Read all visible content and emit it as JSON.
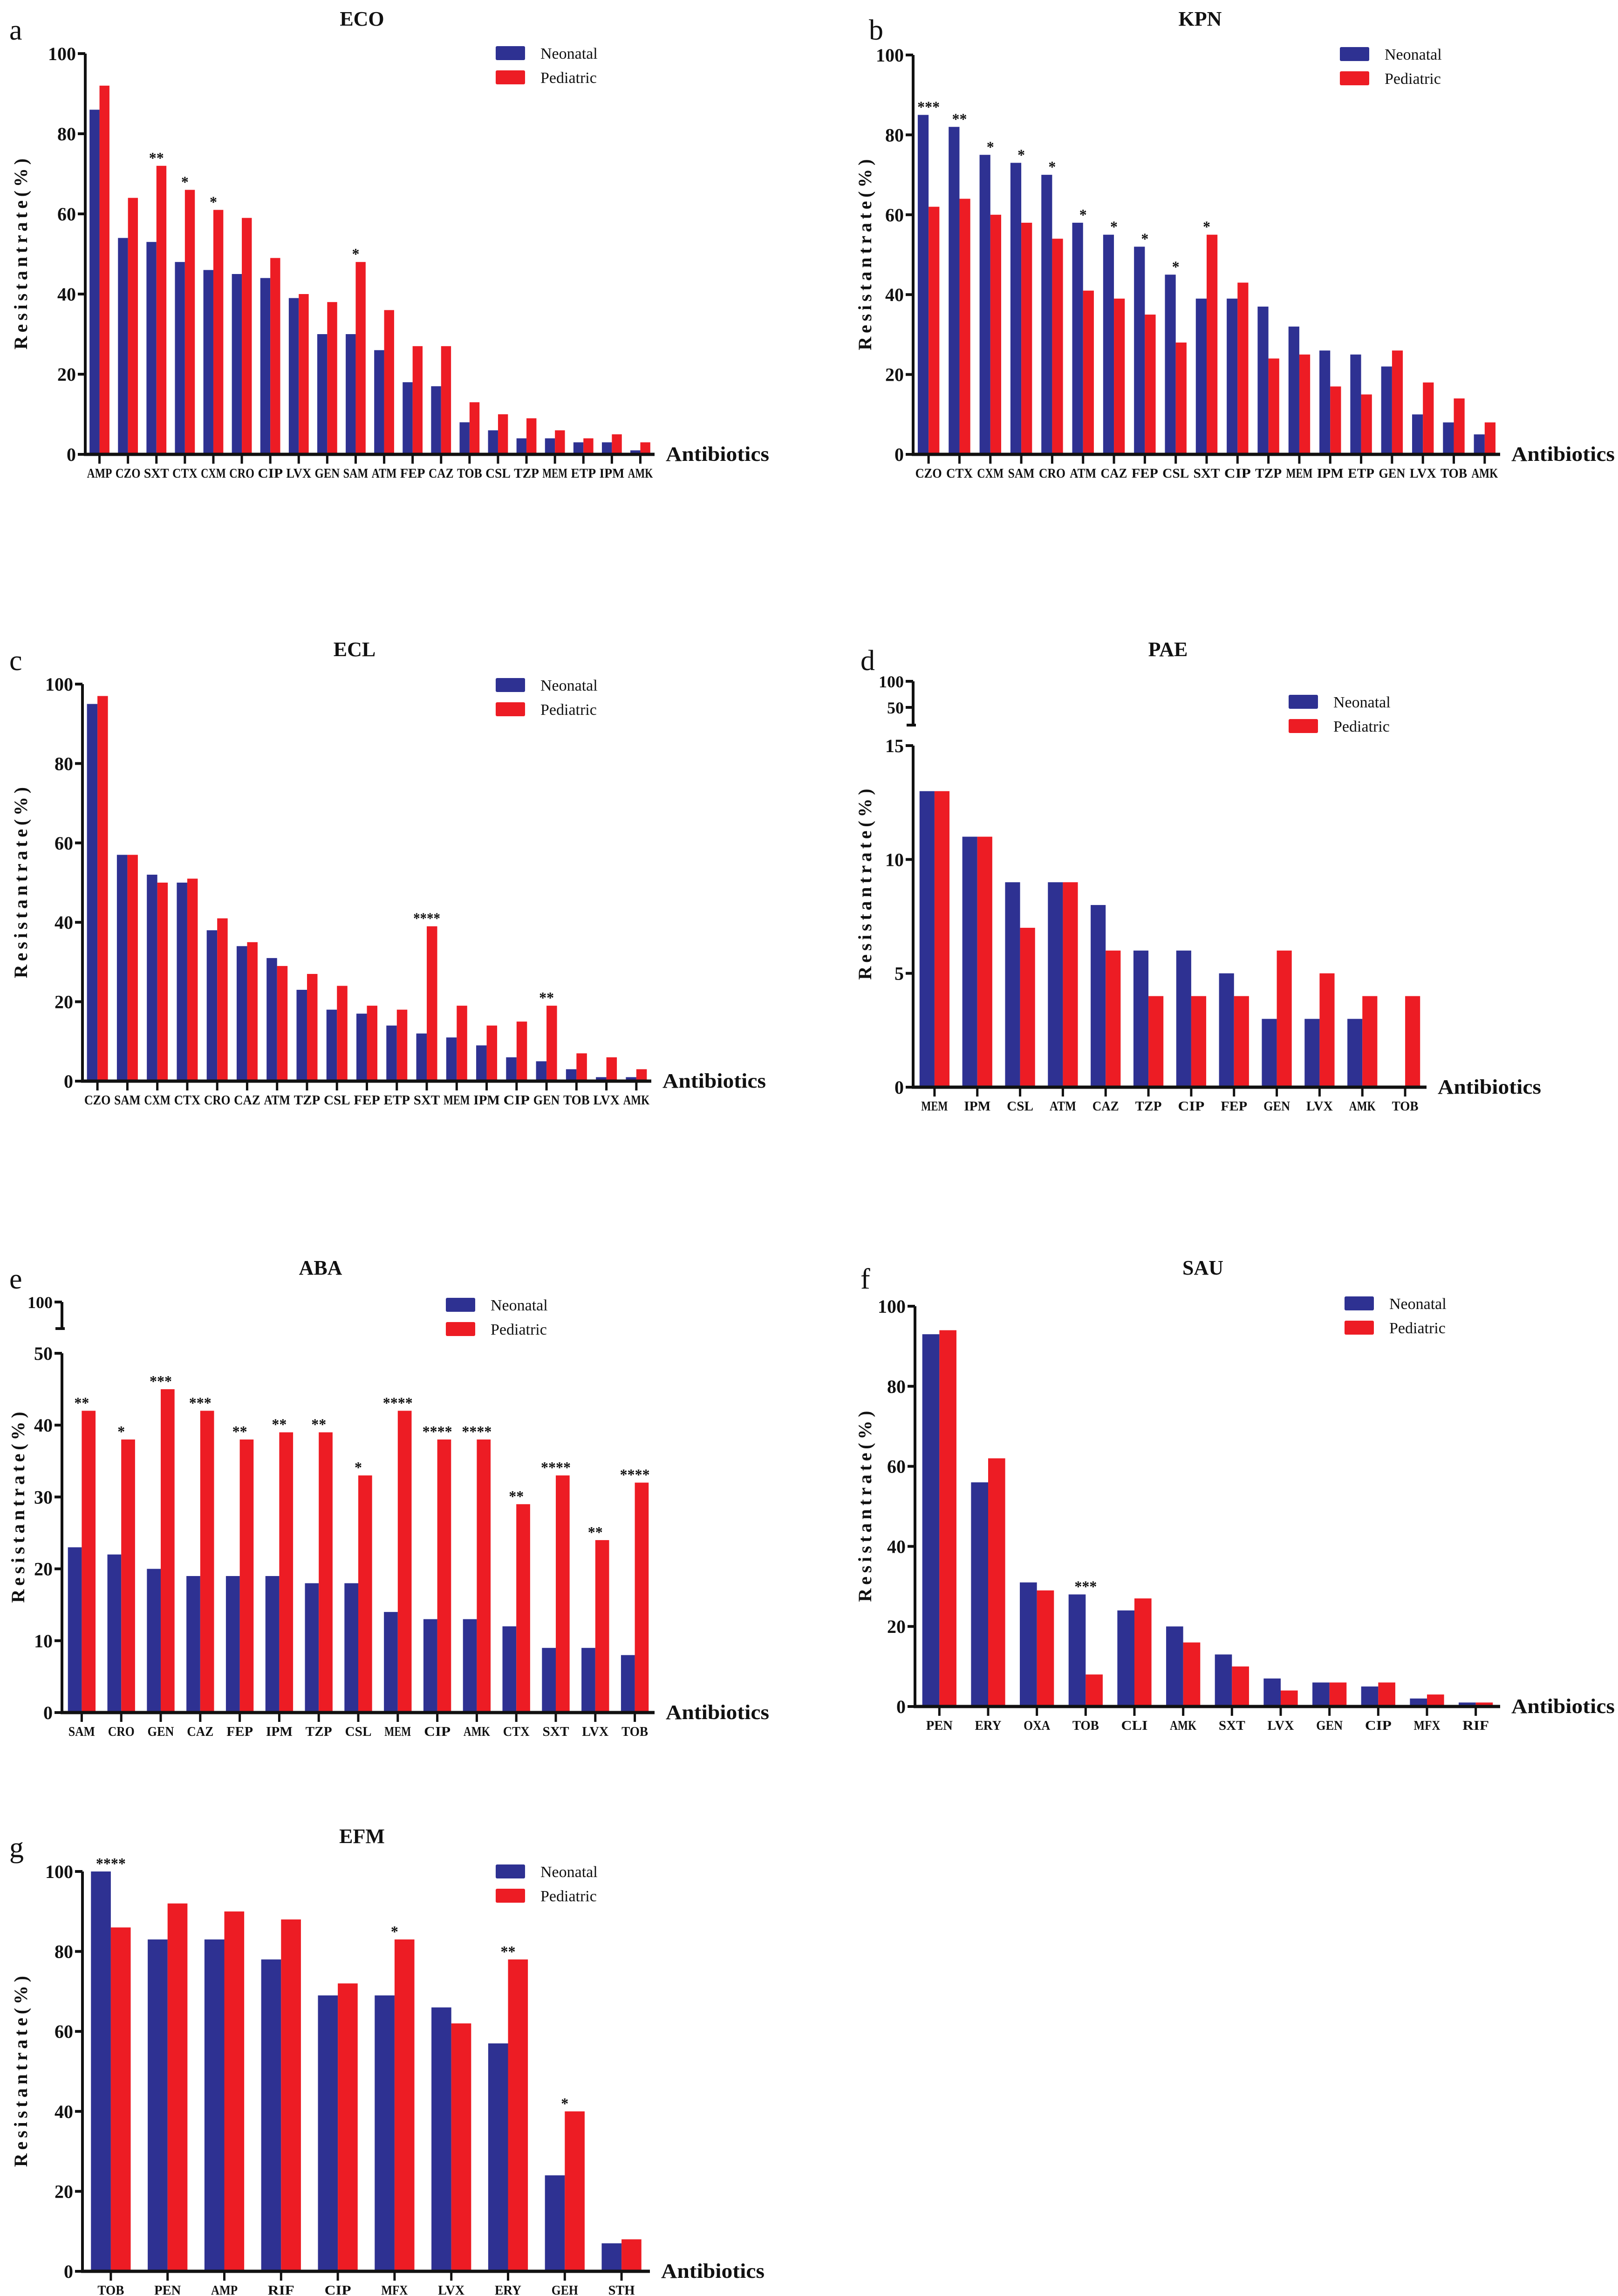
{
  "colors": {
    "neonatal": "#2e3192",
    "pediatric": "#ed1c24",
    "axis": "#111111"
  },
  "legend": [
    "Neonatal",
    "Pediatric"
  ],
  "chart_data": [
    {
      "type": "bar",
      "panel": "a",
      "title": "ECO",
      "xlabel": "Antibiotics",
      "ylabel": "Resistantrate(%)",
      "ylim": [
        0,
        100
      ],
      "y_ticks": [
        0,
        20,
        40,
        60,
        80,
        100
      ],
      "legend_position": "top-right",
      "categories": [
        "AMP",
        "CZO",
        "SXT",
        "CTX",
        "CXM",
        "CRO",
        "CIP",
        "LVX",
        "GEN",
        "SAM",
        "ATM",
        "FEP",
        "CAZ",
        "TOB",
        "CSL",
        "TZP",
        "MEM",
        "ETP",
        "IPM",
        "AMK"
      ],
      "series": [
        {
          "name": "Neonatal",
          "values": [
            86,
            54,
            53,
            48,
            46,
            45,
            44,
            39,
            30,
            30,
            26,
            18,
            17,
            8,
            6,
            4,
            4,
            3,
            3,
            1
          ]
        },
        {
          "name": "Pediatric",
          "values": [
            92,
            64,
            72,
            66,
            61,
            59,
            49,
            40,
            38,
            48,
            36,
            27,
            27,
            13,
            10,
            9,
            6,
            4,
            5,
            3
          ]
        }
      ],
      "significance": [
        "",
        "",
        "**",
        "*",
        "*",
        "",
        "",
        "",
        "",
        "*",
        "",
        "",
        "",
        "",
        "",
        "",
        "",
        "",
        "",
        ""
      ]
    },
    {
      "type": "bar",
      "panel": "b",
      "title": "KPN",
      "xlabel": "Antibiotics",
      "ylabel": "Resistantrate(%)",
      "ylim": [
        0,
        100
      ],
      "y_ticks": [
        0,
        20,
        40,
        60,
        80,
        100
      ],
      "legend_position": "top-right",
      "categories": [
        "CZO",
        "CTX",
        "CXM",
        "SAM",
        "CRO",
        "ATM",
        "CAZ",
        "FEP",
        "CSL",
        "SXT",
        "CIP",
        "TZP",
        "MEM",
        "IPM",
        "ETP",
        "GEN",
        "LVX",
        "TOB",
        "AMK"
      ],
      "series": [
        {
          "name": "Neonatal",
          "values": [
            85,
            82,
            75,
            73,
            70,
            58,
            55,
            52,
            45,
            39,
            39,
            37,
            32,
            26,
            25,
            22,
            10,
            8,
            5
          ]
        },
        {
          "name": "Pediatric",
          "values": [
            62,
            64,
            60,
            58,
            54,
            41,
            39,
            35,
            28,
            55,
            43,
            24,
            25,
            17,
            15,
            26,
            18,
            14,
            8
          ]
        }
      ],
      "significance": [
        "***",
        "**",
        "*",
        "*",
        "*",
        "*",
        "*",
        "*",
        "*",
        "*",
        "",
        "",
        "",
        "",
        "",
        "",
        "",
        "",
        ""
      ]
    },
    {
      "type": "bar",
      "panel": "c",
      "title": "ECL",
      "xlabel": "Antibiotics",
      "ylabel": "Resistantrate(%)",
      "ylim": [
        0,
        100
      ],
      "y_ticks": [
        0,
        20,
        40,
        60,
        80,
        100
      ],
      "legend_position": "top-right",
      "categories": [
        "CZO",
        "SAM",
        "CXM",
        "CTX",
        "CRO",
        "CAZ",
        "ATM",
        "TZP",
        "CSL",
        "FEP",
        "ETP",
        "SXT",
        "MEM",
        "IPM",
        "CIP",
        "GEN",
        "TOB",
        "LVX",
        "AMK"
      ],
      "series": [
        {
          "name": "Neonatal",
          "values": [
            95,
            57,
            52,
            50,
            38,
            34,
            31,
            23,
            18,
            17,
            14,
            12,
            11,
            9,
            6,
            5,
            3,
            1,
            1
          ]
        },
        {
          "name": "Pediatric",
          "values": [
            97,
            57,
            50,
            51,
            41,
            35,
            29,
            27,
            24,
            19,
            18,
            39,
            19,
            14,
            15,
            19,
            7,
            6,
            3
          ]
        }
      ],
      "significance": [
        "",
        "",
        "",
        "",
        "",
        "",
        "",
        "",
        "",
        "",
        "",
        "****",
        "",
        "",
        "",
        "**",
        "",
        "",
        ""
      ]
    },
    {
      "type": "bar",
      "panel": "d",
      "title": "PAE",
      "xlabel": "Antibiotics",
      "ylabel": "Resistantrate(%)",
      "ylim": [
        0,
        15
      ],
      "y_ticks": [
        0,
        5,
        10,
        15
      ],
      "axis_break": true,
      "upper_ticks": [
        50,
        100
      ],
      "legend_position": "top-right",
      "categories": [
        "MEM",
        "IPM",
        "CSL",
        "ATM",
        "CAZ",
        "TZP",
        "CIP",
        "FEP",
        "GEN",
        "LVX",
        "AMK",
        "TOB"
      ],
      "series": [
        {
          "name": "Neonatal",
          "values": [
            13,
            11,
            9,
            9,
            8,
            6,
            6,
            5,
            3,
            3,
            3,
            0
          ]
        },
        {
          "name": "Pediatric",
          "values": [
            13,
            11,
            7,
            9,
            6,
            4,
            4,
            4,
            6,
            5,
            4,
            4
          ]
        }
      ],
      "significance": [
        "",
        "",
        "",
        "",
        "",
        "",
        "",
        "",
        "",
        "",
        "",
        ""
      ]
    },
    {
      "type": "bar",
      "panel": "e",
      "title": "ABA",
      "xlabel": "Antibiotics",
      "ylabel": "Resistantrate(%)",
      "ylim": [
        0,
        50
      ],
      "y_ticks": [
        0,
        10,
        20,
        30,
        40,
        50
      ],
      "axis_break": true,
      "upper_ticks": [
        100
      ],
      "legend_position": "top-right",
      "categories": [
        "SAM",
        "CRO",
        "GEN",
        "CAZ",
        "FEP",
        "IPM",
        "TZP",
        "CSL",
        "MEM",
        "CIP",
        "AMK",
        "CTX",
        "SXT",
        "LVX",
        "TOB"
      ],
      "series": [
        {
          "name": "Neonatal",
          "values": [
            23,
            22,
            20,
            19,
            19,
            19,
            18,
            18,
            14,
            13,
            13,
            12,
            9,
            9,
            8
          ]
        },
        {
          "name": "Pediatric",
          "values": [
            42,
            38,
            45,
            42,
            38,
            39,
            39,
            33,
            42,
            38,
            38,
            29,
            33,
            24,
            32
          ]
        }
      ],
      "significance": [
        "**",
        "*",
        "***",
        "***",
        "**",
        "**",
        "**",
        "*",
        "****",
        "****",
        "****",
        "**",
        "****",
        "**",
        "****"
      ]
    },
    {
      "type": "bar",
      "panel": "f",
      "title": "SAU",
      "xlabel": "Antibiotics",
      "ylabel": "Resistantrate(%)",
      "ylim": [
        0,
        100
      ],
      "y_ticks": [
        0,
        20,
        40,
        60,
        80,
        100
      ],
      "legend_position": "top-right",
      "categories": [
        "PEN",
        "ERY",
        "OXA",
        "TOB",
        "CLI",
        "AMK",
        "SXT",
        "LVX",
        "GEN",
        "CIP",
        "MFX",
        "RIF"
      ],
      "series": [
        {
          "name": "Neonatal",
          "values": [
            93,
            56,
            31,
            28,
            24,
            20,
            13,
            7,
            6,
            5,
            2,
            1
          ]
        },
        {
          "name": "Pediatric",
          "values": [
            94,
            62,
            29,
            8,
            27,
            16,
            10,
            4,
            6,
            6,
            3,
            1
          ]
        }
      ],
      "significance": [
        "",
        "",
        "",
        "***",
        "",
        "",
        "",
        "",
        "",
        "",
        "",
        ""
      ]
    },
    {
      "type": "bar",
      "panel": "g",
      "title": "EFM",
      "xlabel": "Antibiotics",
      "ylabel": "Resistantrate(%)",
      "ylim": [
        0,
        100
      ],
      "y_ticks": [
        0,
        20,
        40,
        60,
        80,
        100
      ],
      "legend_position": "top-right",
      "categories": [
        "TOB",
        "PEN",
        "AMP",
        "RIF",
        "CIP",
        "MFX",
        "LVX",
        "ERY",
        "GEH",
        "STH"
      ],
      "series": [
        {
          "name": "Neonatal",
          "values": [
            100,
            83,
            83,
            78,
            69,
            69,
            66,
            57,
            24,
            7
          ]
        },
        {
          "name": "Pediatric",
          "values": [
            86,
            92,
            90,
            88,
            72,
            83,
            62,
            78,
            40,
            8
          ]
        }
      ],
      "significance": [
        "****",
        "",
        "",
        "",
        "",
        "*",
        "",
        "**",
        "*",
        ""
      ]
    }
  ]
}
